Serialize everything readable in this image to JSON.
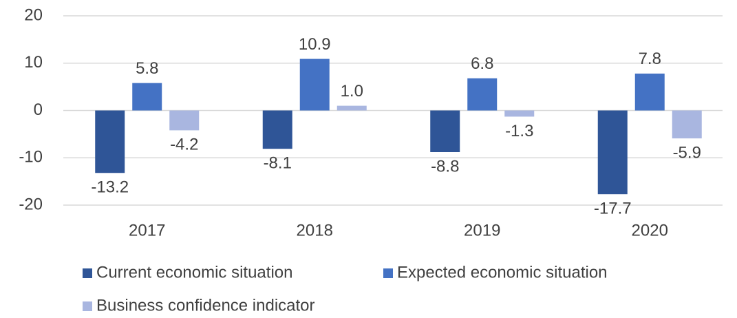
{
  "chart_data": {
    "type": "bar",
    "categories": [
      "2017",
      "2018",
      "2019",
      "2020"
    ],
    "series": [
      {
        "name": "Current economic situation",
        "color": "#2f5597",
        "values": [
          -13.2,
          -8.1,
          -8.8,
          -17.7
        ],
        "value_labels": [
          "-13.2",
          "-8.1",
          "-8.8",
          "-17.7"
        ]
      },
      {
        "name": "Expected economic situation",
        "color": "#4472c4",
        "values": [
          5.8,
          10.9,
          6.8,
          7.8
        ],
        "value_labels": [
          "5.8",
          "10.9",
          "6.8",
          "7.8"
        ]
      },
      {
        "name": "Business confidence indicator",
        "color": "#a9b6e0",
        "values": [
          -4.2,
          1.0,
          -1.3,
          -5.9
        ],
        "value_labels": [
          "-4.2",
          "1.0",
          "-1.3",
          "-5.9"
        ]
      }
    ],
    "ylim": [
      -20,
      20
    ],
    "yticks": [
      -20,
      -10,
      0,
      10,
      20
    ],
    "grid": true,
    "legend": "bottom"
  }
}
